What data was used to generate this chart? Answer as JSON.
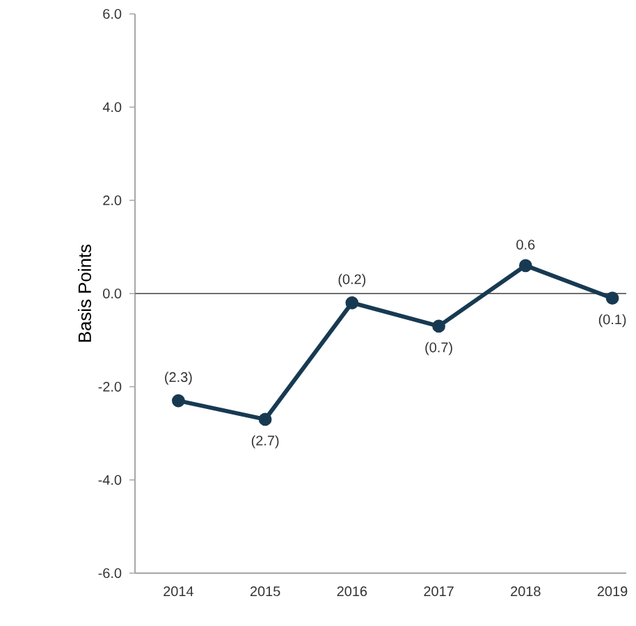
{
  "chart_data": {
    "type": "line",
    "ylabel": "Basis Points",
    "categories": [
      "2014",
      "2015",
      "2016",
      "2017",
      "2018",
      "2019"
    ],
    "series": [
      {
        "color": "#173a52",
        "values": [
          -2.3,
          -2.7,
          -0.2,
          -0.7,
          0.6,
          -0.1
        ],
        "value_labels": [
          "(2.3)",
          "(2.7)",
          "(0.2)",
          "(0.7)",
          "0.6",
          "(0.1)"
        ]
      }
    ],
    "ylim": [
      -6,
      6
    ],
    "yticks": [
      {
        "value": -6,
        "label": "-6.0"
      },
      {
        "value": -4,
        "label": "-4.0"
      },
      {
        "value": -2,
        "label": "-2.0"
      },
      {
        "value": 0,
        "label": "0.0"
      },
      {
        "value": 2,
        "label": "2.0"
      },
      {
        "value": 4,
        "label": "4.0"
      },
      {
        "value": 6,
        "label": "6.0"
      }
    ],
    "ref_lines": [
      {
        "axis": "y",
        "value": 0,
        "color": "#6e6e6e"
      }
    ],
    "marker": "circle",
    "line_style": "solid",
    "grid": false
  }
}
